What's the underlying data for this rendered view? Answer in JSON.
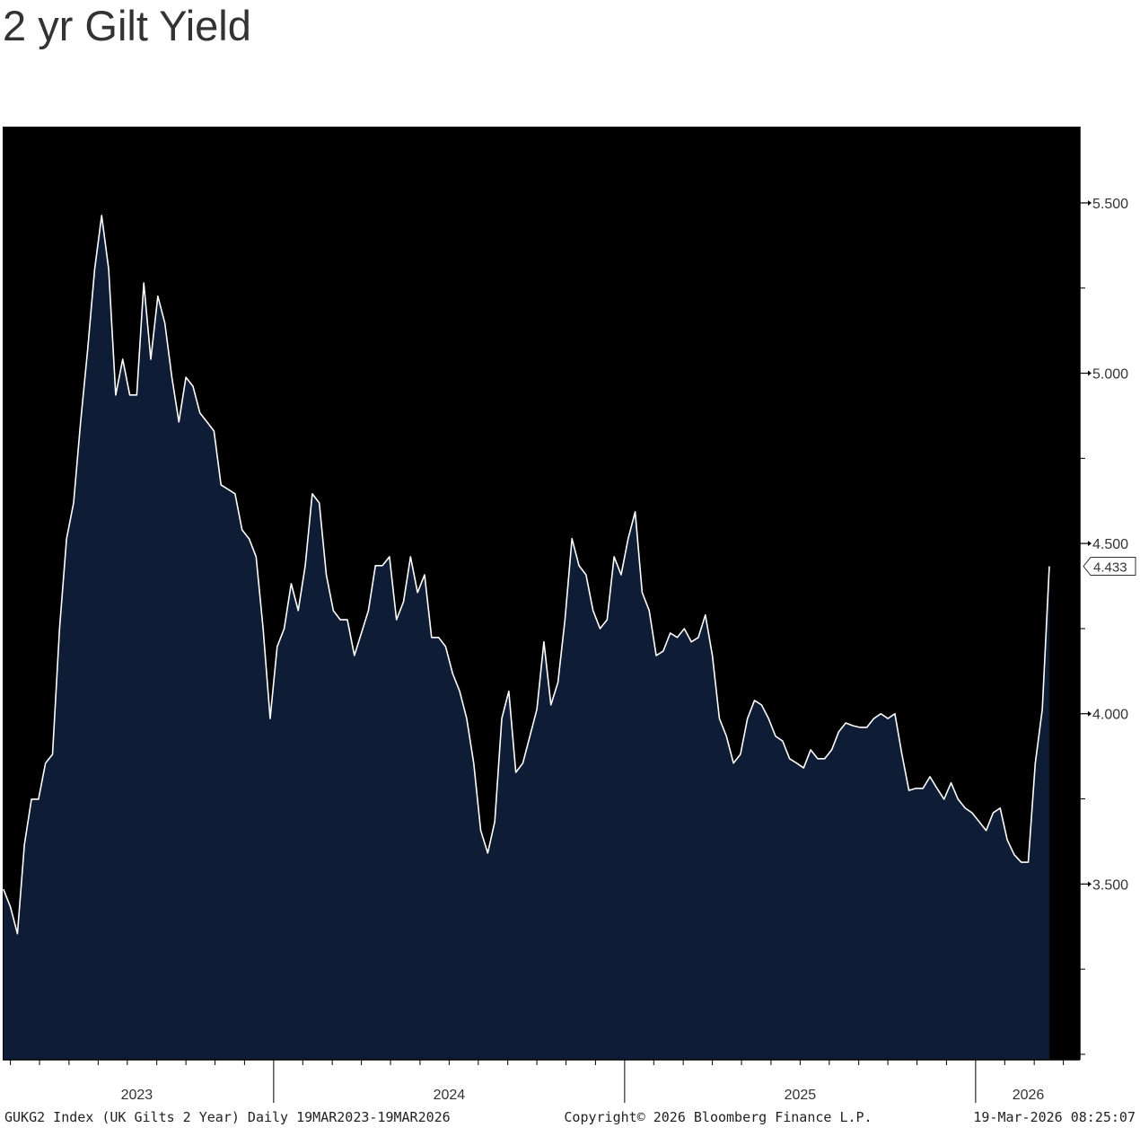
{
  "chart_data": {
    "type": "area",
    "title": "2 yr Gilt Yield",
    "series": [
      {
        "name": "GUKG2 Index",
        "color": "#ffffff",
        "fill": "#0e1c36",
        "x": [
          2023.23,
          2023.25,
          2023.27,
          2023.29,
          2023.31,
          2023.33,
          2023.35,
          2023.37,
          2023.39,
          2023.41,
          2023.43,
          2023.45,
          2023.47,
          2023.49,
          2023.51,
          2023.53,
          2023.55,
          2023.57,
          2023.59,
          2023.61,
          2023.63,
          2023.65,
          2023.67,
          2023.69,
          2023.71,
          2023.73,
          2023.75,
          2023.77,
          2023.79,
          2023.81,
          2023.83,
          2023.85,
          2023.87,
          2023.89,
          2023.91,
          2023.93,
          2023.95,
          2023.97,
          2023.99,
          2024.01,
          2024.03,
          2024.05,
          2024.07,
          2024.09,
          2024.11,
          2024.13,
          2024.15,
          2024.17,
          2024.19,
          2024.21,
          2024.23,
          2024.25,
          2024.27,
          2024.29,
          2024.31,
          2024.33,
          2024.35,
          2024.37,
          2024.39,
          2024.41,
          2024.43,
          2024.45,
          2024.47,
          2024.49,
          2024.51,
          2024.53,
          2024.55,
          2024.57,
          2024.59,
          2024.61,
          2024.63,
          2024.65,
          2024.67,
          2024.69,
          2024.71,
          2024.73,
          2024.75,
          2024.77,
          2024.79,
          2024.81,
          2024.83,
          2024.85,
          2024.87,
          2024.89,
          2024.91,
          2024.93,
          2024.95,
          2024.97,
          2024.99,
          2025.01,
          2025.03,
          2025.05,
          2025.07,
          2025.09,
          2025.11,
          2025.13,
          2025.15,
          2025.17,
          2025.19,
          2025.21,
          2025.23,
          2025.25,
          2025.27,
          2025.29,
          2025.31,
          2025.33,
          2025.35,
          2025.37,
          2025.39,
          2025.41,
          2025.43,
          2025.45,
          2025.47,
          2025.49,
          2025.51,
          2025.53,
          2025.55,
          2025.57,
          2025.59,
          2025.61,
          2025.63,
          2025.65,
          2025.67,
          2025.69,
          2025.71,
          2025.73,
          2025.75,
          2025.77,
          2025.79,
          2025.81,
          2025.83,
          2025.85,
          2025.87,
          2025.89,
          2025.91,
          2025.93,
          2025.95,
          2025.97,
          2025.99,
          2026.01,
          2026.03,
          2026.05,
          2026.07,
          2026.09,
          2026.11,
          2026.13,
          2026.15,
          2026.17,
          2026.19,
          2026.21
        ],
        "values": [
          3.485,
          3.433,
          3.354,
          3.617,
          3.749,
          3.749,
          3.855,
          3.881,
          4.25,
          4.514,
          4.619,
          4.857,
          5.068,
          5.305,
          5.463,
          5.305,
          4.936,
          5.041,
          4.936,
          4.936,
          5.265,
          5.041,
          5.226,
          5.147,
          4.988,
          4.857,
          4.988,
          4.962,
          4.883,
          4.857,
          4.83,
          4.672,
          4.659,
          4.646,
          4.54,
          4.514,
          4.461,
          4.25,
          3.986,
          4.197,
          4.25,
          4.382,
          4.303,
          4.435,
          4.646,
          4.619,
          4.408,
          4.303,
          4.276,
          4.276,
          4.171,
          4.237,
          4.303,
          4.435,
          4.435,
          4.461,
          4.276,
          4.329,
          4.461,
          4.356,
          4.408,
          4.224,
          4.224,
          4.197,
          4.118,
          4.066,
          3.986,
          3.855,
          3.657,
          3.591,
          3.683,
          3.986,
          4.066,
          3.828,
          3.855,
          3.934,
          4.013,
          4.211,
          4.026,
          4.092,
          4.276,
          4.514,
          4.435,
          4.408,
          4.303,
          4.25,
          4.276,
          4.461,
          4.408,
          4.514,
          4.593,
          4.356,
          4.303,
          4.171,
          4.184,
          4.237,
          4.224,
          4.25,
          4.211,
          4.224,
          4.29,
          4.171,
          3.986,
          3.934,
          3.855,
          3.881,
          3.986,
          4.039,
          4.026,
          3.986,
          3.934,
          3.92,
          3.868,
          3.855,
          3.841,
          3.894,
          3.868,
          3.868,
          3.894,
          3.947,
          3.973,
          3.965,
          3.96,
          3.96,
          3.986,
          4.0,
          3.986,
          4.0,
          3.881,
          3.775,
          3.781,
          3.781,
          3.815,
          3.781,
          3.749,
          3.797,
          3.749,
          3.723,
          3.709,
          3.683,
          3.657,
          3.709,
          3.723,
          3.63,
          3.586,
          3.564,
          3.564,
          3.855,
          4.013,
          4.433
        ]
      }
    ],
    "last_value": {
      "value": 4.433,
      "label": "4.433"
    },
    "xlim": [
      2023.228,
      2026.297
    ],
    "xticks": [
      {
        "value": 2023.61,
        "label": "2023"
      },
      {
        "value": 2024.5,
        "label": "2024"
      },
      {
        "value": 2025.5,
        "label": "2025"
      },
      {
        "value": 2026.15,
        "label": "2026"
      }
    ],
    "xseparators": [
      2024,
      2025,
      2026
    ],
    "xminorticks": [
      2023.25,
      2023.333,
      2023.417,
      2023.5,
      2023.583,
      2023.667,
      2023.75,
      2023.833,
      2023.917,
      2024.083,
      2024.167,
      2024.25,
      2024.333,
      2024.417,
      2024.5,
      2024.583,
      2024.667,
      2024.75,
      2024.833,
      2024.917,
      2025.083,
      2025.167,
      2025.25,
      2025.333,
      2025.417,
      2025.5,
      2025.583,
      2025.667,
      2025.75,
      2025.833,
      2025.917,
      2026.083,
      2026.167,
      2026.25
    ],
    "ylim": [
      2.984,
      5.724
    ],
    "yticks": [
      {
        "value": 3.5,
        "label": "3.500"
      },
      {
        "value": 4.0,
        "label": "4.000"
      },
      {
        "value": 4.5,
        "label": "4.500"
      },
      {
        "value": 5.0,
        "label": "5.000"
      },
      {
        "value": 5.5,
        "label": "5.500"
      }
    ],
    "yminorticks": [
      3.0,
      3.25,
      3.75,
      4.25,
      4.75,
      5.25
    ],
    "y_axis_side": "right",
    "background": "#000000",
    "footer": {
      "left": "GUKG2 Index (UK Gilts 2 Year) Daily 19MAR2023-19MAR2026",
      "center": "Copyright© 2026 Bloomberg Finance L.P.",
      "right": "19-Mar-2026 08:25:07"
    }
  }
}
